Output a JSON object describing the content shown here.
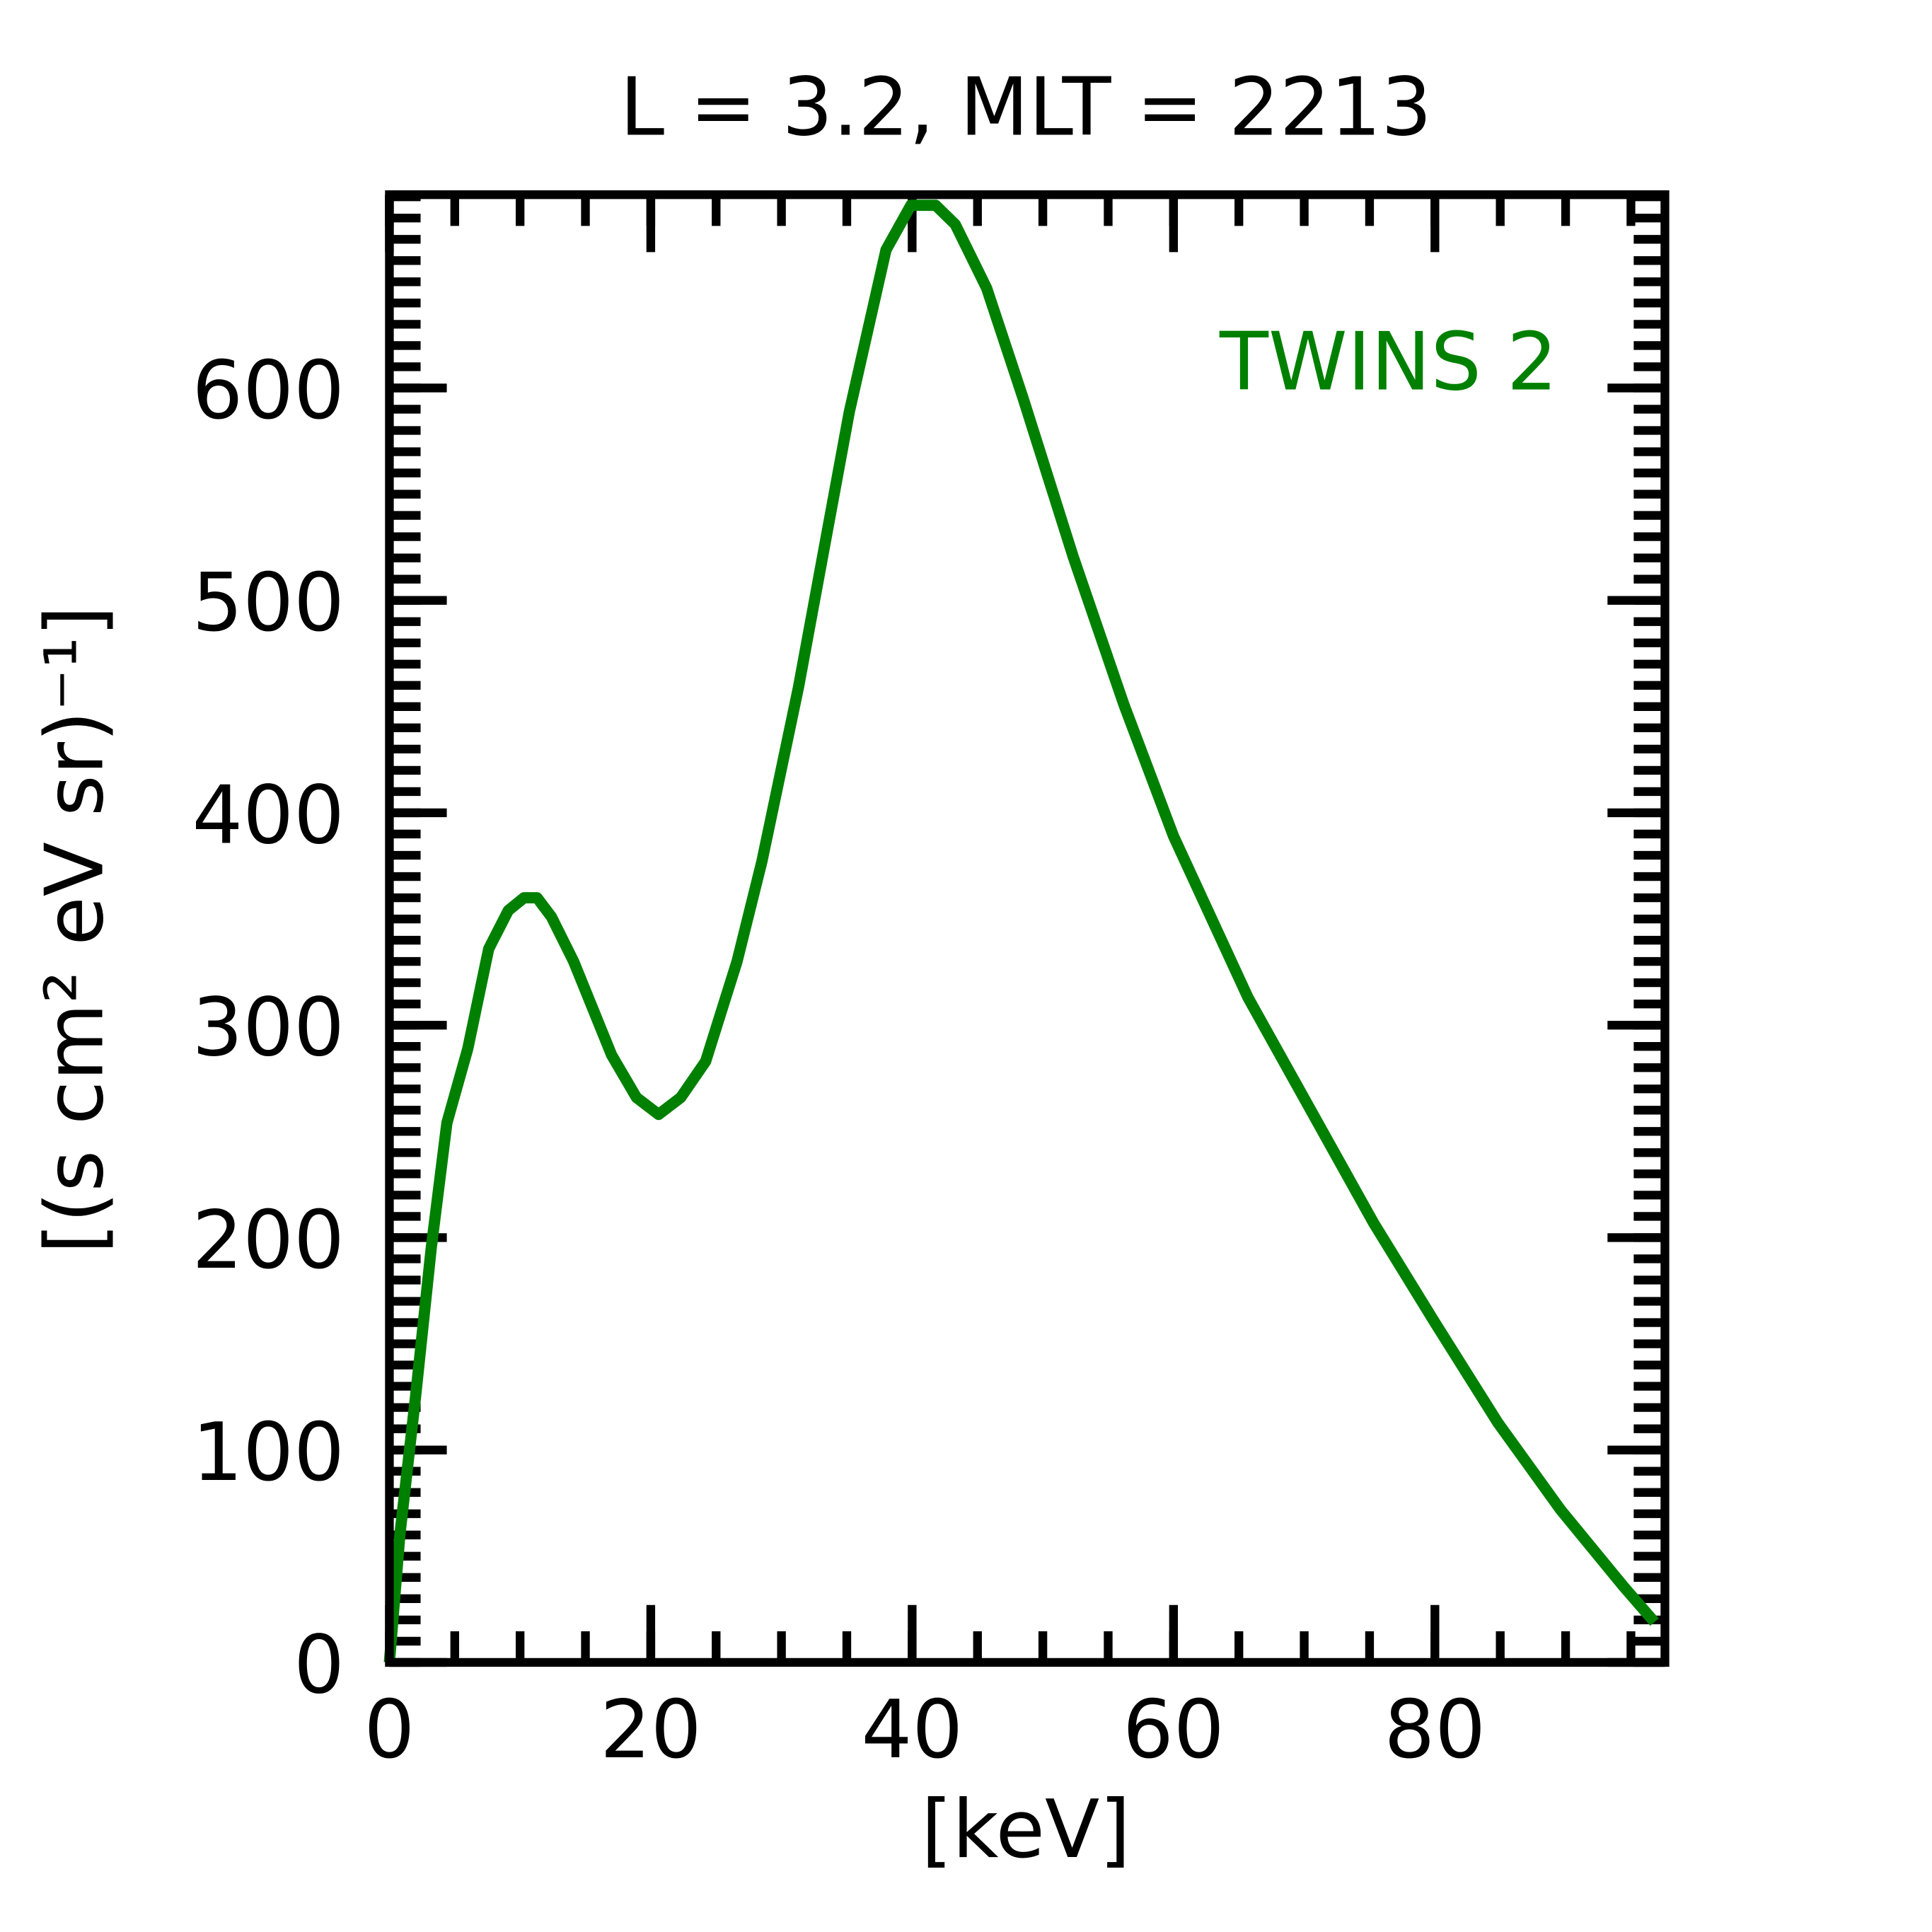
{
  "chart_data": {
    "type": "line",
    "title": "L =  3.2, MLT = 2213",
    "x_label": "[keV]",
    "y_label": "[(s cm² eV sr)⁻¹]",
    "x": [
      0,
      0.8,
      2,
      3.2,
      4.4,
      6,
      7.6,
      9.1,
      10.3,
      11.3,
      12.4,
      14.1,
      17,
      18.9,
      20.6,
      22.3,
      24.2,
      26.6,
      28.5,
      31.3,
      35.2,
      38,
      39.9,
      41.8,
      43.3,
      45.7,
      48.5,
      52.3,
      56.2,
      60,
      65.7,
      70.5,
      75.3,
      80,
      84.8,
      89.6,
      94.4,
      96.8
    ],
    "series": [
      {
        "name": "TWINS 2",
        "color": "#008000",
        "values": [
          0,
          60,
          125,
          195,
          254,
          289,
          336,
          354,
          360,
          360,
          351,
          330,
          286,
          266,
          258,
          266,
          283,
          330,
          377,
          459,
          589,
          665,
          686,
          686,
          677,
          647,
          595,
          521,
          451,
          389,
          313,
          260,
          207,
          160,
          113,
          72,
          36,
          19
        ]
      }
    ],
    "xlim": [
      0,
      97.6
    ],
    "ylim": [
      0,
      691
    ],
    "xticks": [
      0,
      20,
      40,
      60,
      80
    ],
    "yticks": [
      0,
      100,
      200,
      300,
      400,
      500,
      600
    ],
    "xminor": 5,
    "yminor": 10,
    "legend": "upper right"
  }
}
